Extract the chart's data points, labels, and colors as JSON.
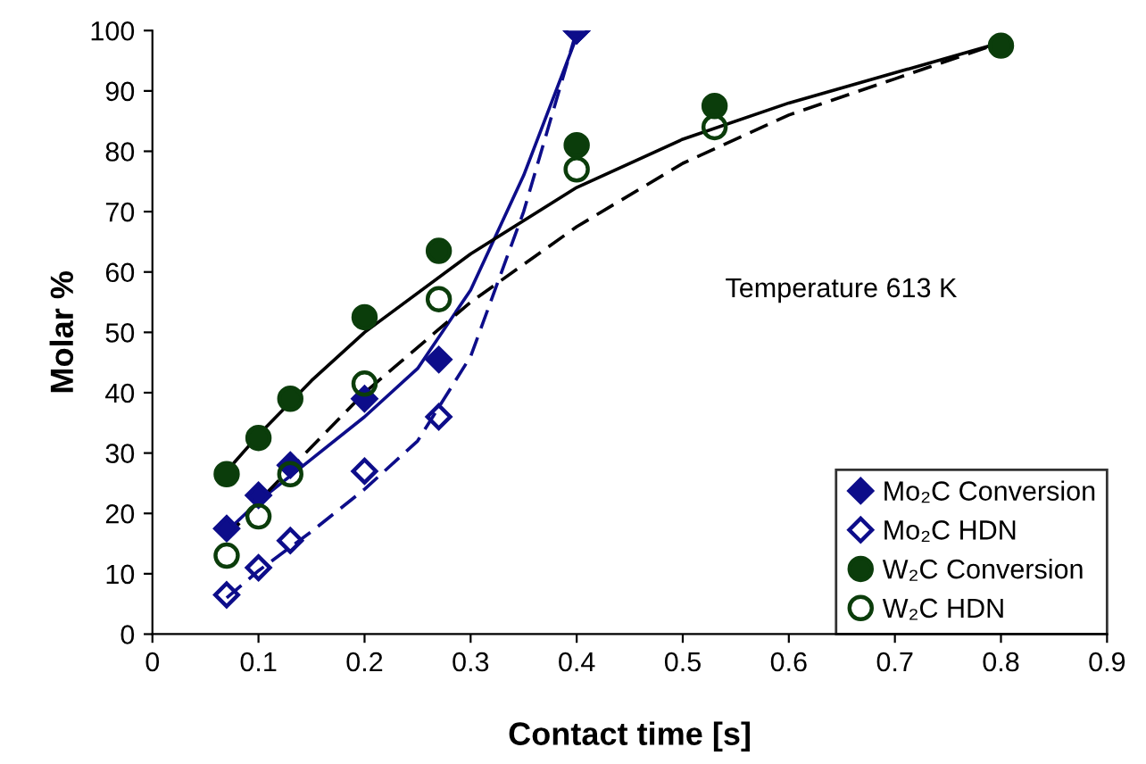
{
  "chart_data": {
    "type": "scatter",
    "xlabel": "Contact time [s]",
    "ylabel": "Molar %",
    "xlim": [
      0,
      0.9
    ],
    "xticks": [
      0,
      0.1,
      0.2,
      0.3,
      0.4,
      0.5,
      0.6,
      0.7,
      0.8,
      0.9
    ],
    "ylim": [
      0,
      100
    ],
    "yticks": [
      0,
      10,
      20,
      30,
      40,
      50,
      60,
      70,
      80,
      90,
      100
    ],
    "grid": false,
    "legend": "bottom right",
    "annotations": [
      {
        "text": "Temperature 613 K"
      }
    ],
    "series": [
      {
        "name": "Mo₂C Conversion",
        "marker": "diamond",
        "color": "#0d0d8a",
        "x": [
          0.07,
          0.1,
          0.13,
          0.2,
          0.27,
          0.4
        ],
        "values": [
          17.5,
          23,
          28,
          39,
          45.5,
          100
        ]
      },
      {
        "name": "Mo₂C HDN",
        "marker": "diamond",
        "color": "#0d0d8a",
        "x": [
          0.07,
          0.1,
          0.13,
          0.2,
          0.27,
          0.4
        ],
        "values": [
          6.5,
          11,
          15.5,
          27,
          36,
          100
        ]
      },
      {
        "name": "W₂C Conversion",
        "marker": "circle",
        "color": "#0b3d0b",
        "x": [
          0.07,
          0.1,
          0.13,
          0.2,
          0.27,
          0.4,
          0.53,
          0.8
        ],
        "values": [
          26.5,
          32.5,
          39,
          52.5,
          63.5,
          81,
          87.5,
          97.5
        ]
      },
      {
        "name": "W₂C HDN",
        "marker": "circle",
        "color": "#0b3d0b",
        "x": [
          0.07,
          0.1,
          0.13,
          0.2,
          0.27,
          0.4,
          0.53
        ],
        "values": [
          13,
          19.5,
          26.5,
          41.5,
          55.5,
          77,
          84
        ]
      },
      {
        "type": "line",
        "line_style": "solid",
        "color": "#0d0d8a",
        "x": [
          0.07,
          0.1,
          0.15,
          0.2,
          0.25,
          0.3,
          0.35,
          0.4
        ],
        "values": [
          17,
          22,
          29,
          36,
          44,
          57,
          76,
          99
        ]
      },
      {
        "type": "line",
        "line_style": "dashed",
        "color": "#0d0d8a",
        "x": [
          0.07,
          0.1,
          0.15,
          0.2,
          0.25,
          0.3,
          0.35,
          0.4
        ],
        "values": [
          6,
          10.5,
          17,
          24,
          32,
          46,
          70,
          100
        ]
      },
      {
        "type": "line",
        "line_style": "solid",
        "color": "#000000",
        "x": [
          0.07,
          0.1,
          0.15,
          0.2,
          0.3,
          0.4,
          0.5,
          0.6,
          0.7,
          0.8
        ],
        "values": [
          27,
          33,
          42,
          50,
          63,
          74,
          82,
          88,
          93,
          98
        ]
      },
      {
        "type": "line",
        "line_style": "dashed",
        "color": "#000000",
        "x": [
          0.07,
          0.1,
          0.15,
          0.2,
          0.3,
          0.4,
          0.5,
          0.6,
          0.7,
          0.8
        ],
        "values": [
          16,
          22,
          31,
          40,
          55,
          67.5,
          78,
          86,
          92,
          98
        ]
      }
    ]
  }
}
